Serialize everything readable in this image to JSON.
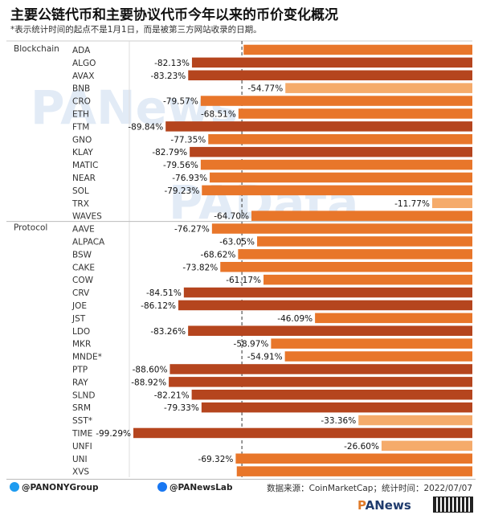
{
  "header": {
    "title": "主要公链代币和主要协议代币今年以来的币价变化概况",
    "subtitle": "*表示统计时间的起点不是1月1日，而是被第三方网站收录的日期。"
  },
  "chart_data": {
    "type": "bar",
    "orientation": "horizontal",
    "xlim": [
      -100,
      0
    ],
    "groups": [
      {
        "name": "Blockchain",
        "categories": [
          "ADA",
          "ALGO",
          "AVAX",
          "BNB",
          "CRO",
          "ETH",
          "FTM",
          "GNO",
          "KLAY",
          "MATIC",
          "NEAR",
          "SOL",
          "TRX",
          "WAVES"
        ],
        "values": [
          -67.0,
          -82.13,
          -83.23,
          -54.77,
          -79.57,
          -68.51,
          -89.84,
          -77.35,
          -82.79,
          -79.56,
          -76.93,
          -79.23,
          -11.77,
          -64.7
        ],
        "labels": [
          "",
          "-82.13%",
          "-83.23%",
          "-54.77%",
          "-79.57%",
          "-68.51%",
          "-89.84%",
          "-77.35%",
          "-82.79%",
          "-79.56%",
          "-76.93%",
          "-79.23%",
          "-11.77%",
          "-64.70%"
        ]
      },
      {
        "name": "Protocol",
        "categories": [
          "AAVE",
          "ALPACA",
          "BSW",
          "CAKE",
          "COW",
          "CRV",
          "JOE",
          "JST",
          "LDO",
          "MKR",
          "MNDE*",
          "PTP",
          "RAY",
          "SLND",
          "SRM",
          "SST*",
          "TIME",
          "UNFI",
          "UNI",
          "XVS"
        ],
        "values": [
          -76.27,
          -63.05,
          -68.62,
          -73.82,
          -61.17,
          -84.51,
          -86.12,
          -46.09,
          -83.26,
          -58.97,
          -54.91,
          -88.6,
          -88.92,
          -82.21,
          -79.33,
          -33.36,
          -99.29,
          -26.6,
          -69.32,
          -69.0
        ],
        "labels": [
          "-76.27%",
          "-63.05%",
          "-68.62%",
          "-73.82%",
          "-61.17%",
          "-84.51%",
          "-86.12%",
          "-46.09%",
          "-83.26%",
          "-58.97%",
          "-54.91%",
          "-88.60%",
          "-88.92%",
          "-82.21%",
          "-79.33%",
          "-33.36%",
          "-99.29%",
          "-26.60%",
          "-69.32%",
          ""
        ]
      }
    ],
    "colors": {
      "light": "#f5ab6b",
      "mid": "#e8762a",
      "dark": "#b5451e"
    }
  },
  "footer": {
    "twitter": "@PANONYGroup",
    "facebook": "@PANewsLab",
    "source": "数据来源：CoinMarketCap；统计时间：2022/07/07",
    "brand_prefix": "P",
    "brand_rest": "ANews"
  },
  "watermarks": [
    "PANews",
    "PAData"
  ]
}
